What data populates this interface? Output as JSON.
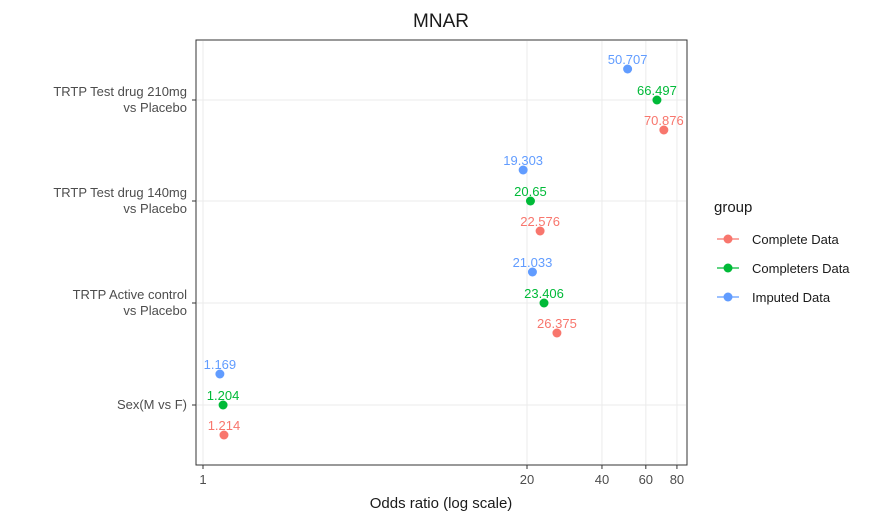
{
  "chart_data": {
    "type": "scatter",
    "title": "MNAR",
    "xlabel": "Odds ratio (log scale)",
    "ylabel": "",
    "x_scale": "log",
    "x_ticks": [
      1,
      20,
      40,
      60,
      80
    ],
    "x_tick_labels": [
      "1",
      "20",
      "40",
      "60",
      "80"
    ],
    "categories": [
      [
        "TRTP Test drug 210mg",
        "vs Placebo"
      ],
      [
        "TRTP Test drug 140mg",
        "vs Placebo"
      ],
      [
        "TRTP Active control",
        "vs Placebo"
      ],
      [
        "Sex(M vs F)"
      ]
    ],
    "grid": true,
    "legend": {
      "title": "group",
      "position": "right"
    },
    "series": [
      {
        "name": "Complete Data",
        "color": "#F8766D",
        "values": [
          70.876,
          22.576,
          26.375,
          1.214
        ],
        "labels": [
          "70.876",
          "22.576",
          "26.375",
          "1.214"
        ]
      },
      {
        "name": "Completers Data",
        "color": "#00BA38",
        "values": [
          66.497,
          20.65,
          23.406,
          1.204
        ],
        "labels": [
          "66.497",
          "20.65",
          "23.406",
          "1.204"
        ]
      },
      {
        "name": "Imputed Data",
        "color": "#619CFF",
        "values": [
          50.707,
          19.303,
          21.033,
          1.169
        ],
        "labels": [
          "50.707",
          "19.303",
          "21.033",
          "1.169"
        ]
      }
    ]
  }
}
